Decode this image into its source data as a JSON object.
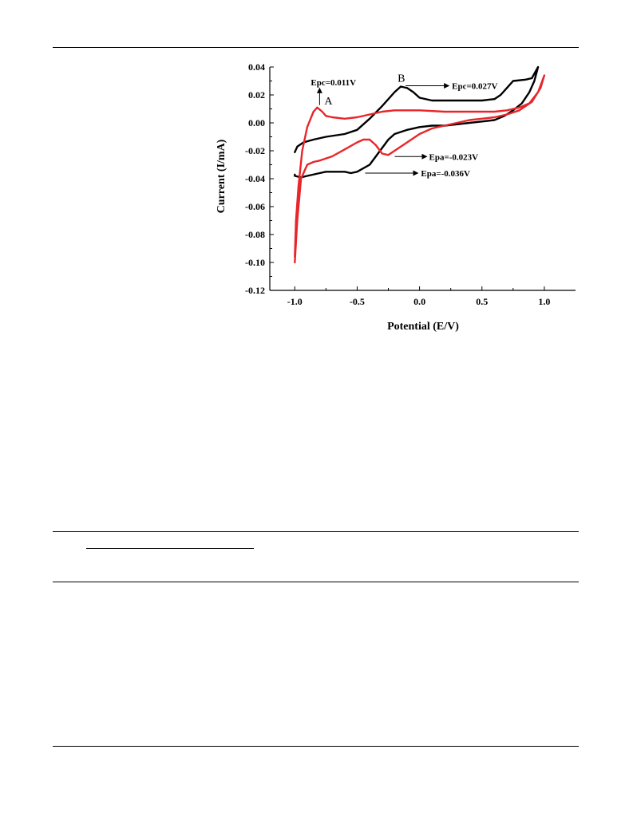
{
  "chart_data": {
    "type": "line",
    "xlabel": "Potential (E/V)",
    "ylabel": "Current (I/mA)",
    "xlim": [
      -1.2,
      1.25
    ],
    "ylim": [
      -0.12,
      0.04
    ],
    "x_ticks": [
      -1.0,
      -0.5,
      0.0,
      0.5,
      1.0
    ],
    "x_tick_labels": [
      "-1.0",
      "-0.5",
      "0.0",
      "0.5",
      "1.0"
    ],
    "y_ticks": [
      0.04,
      0.02,
      0.0,
      -0.02,
      -0.04,
      -0.06,
      -0.08,
      -0.1,
      -0.12
    ],
    "y_tick_labels": [
      "0.04",
      "0.02",
      "0.00",
      "-0.02",
      "-0.04",
      "-0.06",
      "-0.08",
      "-0.10",
      "-0.12"
    ],
    "grid": false,
    "series": [
      {
        "color": "#000000",
        "x": [
          -1.0,
          -0.98,
          -0.93,
          -0.85,
          -0.75,
          -0.6,
          -0.5,
          -0.4,
          -0.3,
          -0.2,
          -0.15,
          -0.1,
          -0.05,
          0.0,
          0.1,
          0.2,
          0.3,
          0.4,
          0.5,
          0.55,
          0.6,
          0.65,
          0.7,
          0.75,
          0.85,
          0.9,
          0.95,
          0.92,
          0.88,
          0.82,
          0.75,
          0.68,
          0.6,
          0.5,
          0.4,
          0.3,
          0.2,
          0.1,
          0.0,
          -0.1,
          -0.2,
          -0.25,
          -0.3,
          -0.4,
          -0.5,
          -0.55,
          -0.6,
          -0.7,
          -0.75,
          -0.8,
          -0.9,
          -0.95,
          -1.0,
          -1.0
        ],
        "y": [
          -0.021,
          -0.017,
          -0.014,
          -0.012,
          -0.01,
          -0.008,
          -0.005,
          0.003,
          0.012,
          0.022,
          0.026,
          0.025,
          0.022,
          0.018,
          0.016,
          0.016,
          0.016,
          0.016,
          0.016,
          0.0165,
          0.017,
          0.02,
          0.025,
          0.03,
          0.031,
          0.032,
          0.04,
          0.03,
          0.022,
          0.014,
          0.009,
          0.005,
          0.002,
          0.001,
          0.0,
          -0.001,
          -0.002,
          -0.002,
          -0.003,
          -0.005,
          -0.008,
          -0.012,
          -0.018,
          -0.03,
          -0.035,
          -0.036,
          -0.035,
          -0.035,
          -0.035,
          -0.036,
          -0.038,
          -0.039,
          -0.038,
          -0.037
        ]
      },
      {
        "color": "#e8262a",
        "x": [
          -1.0,
          -0.99,
          -0.97,
          -0.94,
          -0.9,
          -0.85,
          -0.82,
          -0.78,
          -0.75,
          -0.7,
          -0.6,
          -0.5,
          -0.4,
          -0.3,
          -0.2,
          -0.1,
          0.0,
          0.2,
          0.4,
          0.6,
          0.7,
          0.8,
          0.88,
          0.95,
          1.0,
          0.97,
          0.9,
          0.8,
          0.7,
          0.6,
          0.5,
          0.4,
          0.2,
          0.1,
          0.0,
          -0.1,
          -0.2,
          -0.25,
          -0.3,
          -0.35,
          -0.4,
          -0.45,
          -0.5,
          -0.6,
          -0.7,
          -0.8,
          -0.85,
          -0.9,
          -0.95,
          -0.98,
          -1.0
        ],
        "y": [
          -0.096,
          -0.07,
          -0.045,
          -0.02,
          -0.003,
          0.008,
          0.011,
          0.008,
          0.005,
          0.004,
          0.003,
          0.004,
          0.006,
          0.008,
          0.009,
          0.009,
          0.009,
          0.008,
          0.008,
          0.008,
          0.009,
          0.011,
          0.014,
          0.022,
          0.034,
          0.025,
          0.015,
          0.009,
          0.006,
          0.004,
          0.003,
          0.002,
          -0.002,
          -0.004,
          -0.008,
          -0.014,
          -0.02,
          -0.023,
          -0.022,
          -0.016,
          -0.012,
          -0.012,
          -0.014,
          -0.019,
          -0.024,
          -0.027,
          -0.028,
          -0.03,
          -0.04,
          -0.07,
          -0.1
        ]
      }
    ],
    "annotations": [
      {
        "label": "Epc=0.011V",
        "x": -0.82,
        "y": 0.011
      },
      {
        "label": "A",
        "x": -0.82,
        "y": 0.011
      },
      {
        "label": "B",
        "x": -0.15,
        "y": 0.026
      },
      {
        "label": "Epc=0.027V",
        "x": -0.15,
        "y": 0.026
      },
      {
        "label": "Epa=-0.023V",
        "x": -0.25,
        "y": -0.023
      },
      {
        "label": "Epa=-0.036V",
        "x": -0.5,
        "y": -0.036
      }
    ]
  }
}
